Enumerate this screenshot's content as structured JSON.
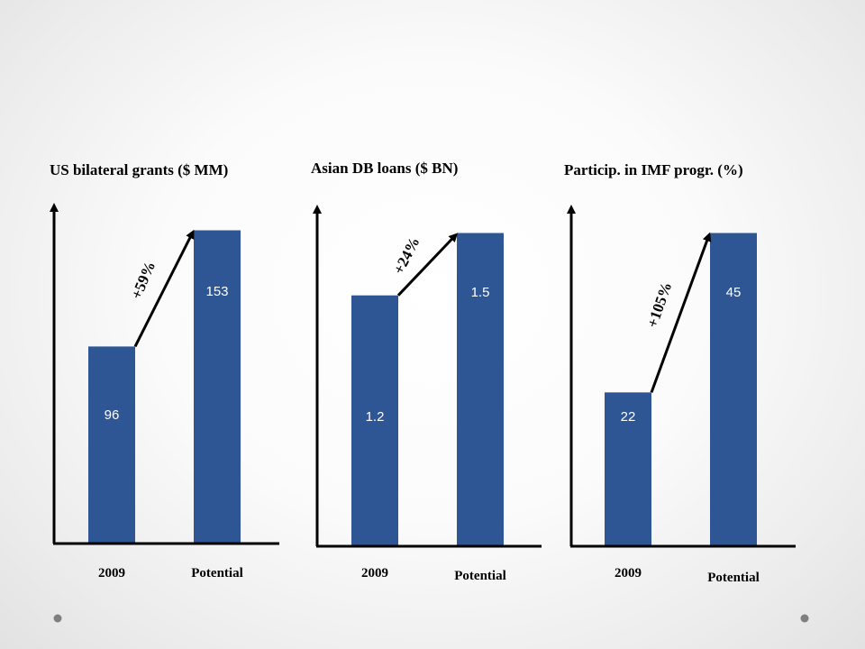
{
  "colors": {
    "bar": "#2e5594",
    "axis": "#000000",
    "dot": "#7f7f7f"
  },
  "chart_data": [
    {
      "type": "bar",
      "title": "US bilateral grants ($ MM)",
      "categories": [
        "2009",
        "Potential"
      ],
      "values": [
        96,
        153
      ],
      "value_labels": [
        "96",
        "153"
      ],
      "growth_label": "+59%",
      "ylim": [
        0,
        153
      ]
    },
    {
      "type": "bar",
      "title": "Asian DB loans ($ BN)",
      "categories": [
        "2009",
        "Potential"
      ],
      "values": [
        1.2,
        1.5
      ],
      "value_labels": [
        "1.2",
        "1.5"
      ],
      "growth_label": "+24%",
      "ylim": [
        0,
        1.5
      ]
    },
    {
      "type": "bar",
      "title": "Particip. in IMF progr. (%)",
      "categories": [
        "2009",
        "Potential"
      ],
      "values": [
        22,
        45
      ],
      "value_labels": [
        "22",
        "45"
      ],
      "growth_label": "+105%",
      "ylim": [
        0,
        45
      ]
    }
  ]
}
